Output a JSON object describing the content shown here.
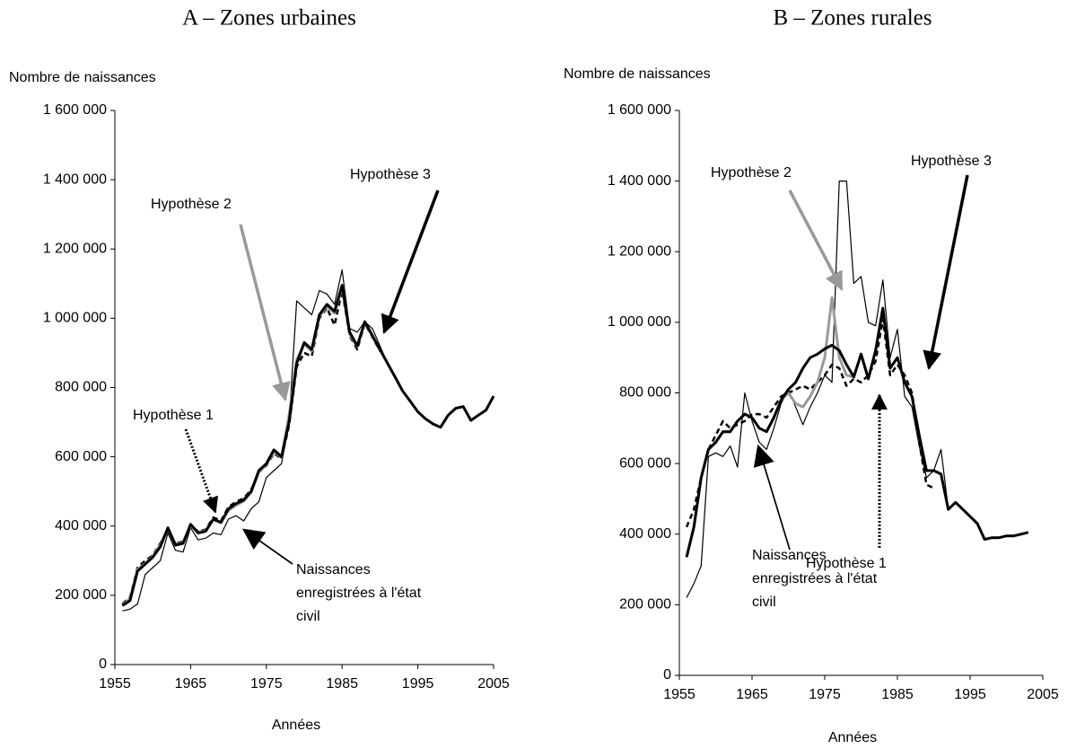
{
  "chart_data": [
    {
      "type": "line",
      "title": "A – Zones urbaines",
      "ylabel": "Nombre de naissances",
      "xlabel": "Années",
      "x": [
        1956,
        1957,
        1958,
        1959,
        1960,
        1961,
        1962,
        1963,
        1964,
        1965,
        1966,
        1967,
        1968,
        1969,
        1970,
        1971,
        1972,
        1973,
        1974,
        1975,
        1976,
        1977,
        1978,
        1979,
        1980,
        1981,
        1982,
        1983,
        1984,
        1985,
        1986,
        1987,
        1988,
        1989,
        1990,
        1991,
        1992,
        1993,
        1994,
        1995,
        1996,
        1997,
        1998,
        1999,
        2000,
        2001,
        2002,
        2003,
        2004,
        2005
      ],
      "xlim": [
        1955,
        2005
      ],
      "xticks": [
        1955,
        1965,
        1975,
        1985,
        1995,
        2005
      ],
      "ylim": [
        0,
        1600000
      ],
      "yticks": [
        0,
        {
          "value": 200000,
          "label": "200 000"
        },
        {
          "value": 400000,
          "label": "400 000"
        },
        {
          "value": 600000,
          "label": "600 000"
        },
        {
          "value": 800000,
          "label": "800 000"
        },
        {
          "value": 1000000,
          "label": "1 000 000"
        },
        {
          "value": 1200000,
          "label": "1 200 000"
        },
        {
          "value": 1400000,
          "label": "1 400 000"
        },
        {
          "value": 1600000,
          "label": "1 600 000"
        }
      ],
      "series": [
        {
          "name": "Naissances enregistrées à l'état civil",
          "color": "#000000",
          "line_style": "solid",
          "values": [
            155000,
            160000,
            175000,
            260000,
            280000,
            300000,
            380000,
            330000,
            325000,
            395000,
            360000,
            365000,
            380000,
            375000,
            420000,
            430000,
            415000,
            450000,
            470000,
            540000,
            560000,
            580000,
            700000,
            1050000,
            1030000,
            1010000,
            1080000,
            1070000,
            1040000,
            1140000,
            970000,
            960000,
            990000,
            970000,
            920000,
            870000,
            830000,
            790000,
            760000,
            730000,
            710000,
            695000,
            685000,
            720000,
            740000,
            745000,
            705000,
            720000,
            735000,
            775000
          ]
        },
        {
          "name": "Hypothèse 1",
          "color": "#000000",
          "line_style": "dashed",
          "values": [
            175000,
            195000,
            280000,
            300000,
            315000,
            350000,
            390000,
            350000,
            355000,
            400000,
            385000,
            390000,
            425000,
            415000,
            455000,
            470000,
            480000,
            505000,
            555000,
            575000,
            610000,
            595000,
            690000,
            860000,
            900000,
            890000,
            1000000,
            1030000,
            980000,
            1080000,
            950000,
            910000,
            985000,
            945000,
            905000,
            null,
            null,
            null,
            null,
            null,
            null,
            null,
            null,
            null,
            null,
            null,
            null,
            null,
            null,
            null
          ]
        },
        {
          "name": "Hypothèse 2",
          "color": "#999999",
          "line_style": "solid",
          "values": [
            172000,
            190000,
            275000,
            292000,
            312000,
            345000,
            392000,
            348000,
            352000,
            402000,
            382000,
            388000,
            418000,
            412000,
            445000,
            460000,
            472000,
            498000,
            555000,
            578000,
            615000,
            598000,
            720000,
            880000,
            925000,
            905000,
            1005000,
            1035000,
            1015000,
            1090000,
            955000,
            918000,
            988000,
            948000,
            908000,
            null,
            null,
            null,
            null,
            null,
            null,
            null,
            null,
            null,
            null,
            null,
            null,
            null,
            null,
            null
          ]
        },
        {
          "name": "Hypothèse 3",
          "color": "#000000",
          "line_style": "solid",
          "values": [
            170000,
            185000,
            270000,
            290000,
            310000,
            340000,
            395000,
            345000,
            350000,
            405000,
            380000,
            385000,
            420000,
            410000,
            450000,
            465000,
            475000,
            500000,
            560000,
            580000,
            620000,
            600000,
            700000,
            870000,
            930000,
            910000,
            1010000,
            1040000,
            1020000,
            1095000,
            960000,
            920000,
            990000,
            950000,
            910000,
            870000,
            830000,
            790000,
            760000,
            730000,
            710000,
            695000,
            685000,
            720000,
            740000,
            745000,
            705000,
            720000,
            735000,
            775000
          ]
        }
      ]
    },
    {
      "type": "line",
      "title": "B – Zones rurales",
      "ylabel": "Nombre de naissances",
      "xlabel": "Années",
      "x": [
        1956,
        1957,
        1958,
        1959,
        1960,
        1961,
        1962,
        1963,
        1964,
        1965,
        1966,
        1967,
        1968,
        1969,
        1970,
        1971,
        1972,
        1973,
        1974,
        1975,
        1976,
        1977,
        1978,
        1979,
        1980,
        1981,
        1982,
        1983,
        1984,
        1985,
        1986,
        1987,
        1988,
        1989,
        1990,
        1991,
        1992,
        1993,
        1994,
        1995,
        1996,
        1997,
        1998,
        1999,
        2000,
        2001,
        2002,
        2003
      ],
      "xlim": [
        1955,
        2005
      ],
      "xticks": [
        1955,
        1965,
        1975,
        1985,
        1995,
        2005
      ],
      "ylim": [
        0,
        1600000
      ],
      "yticks": [
        0,
        {
          "value": 200000,
          "label": "200 000"
        },
        {
          "value": 400000,
          "label": "400 000"
        },
        {
          "value": 600000,
          "label": "600 000"
        },
        {
          "value": 800000,
          "label": "800 000"
        },
        {
          "value": 1000000,
          "label": "1 000 000"
        },
        {
          "value": 1200000,
          "label": "1 200 000"
        },
        {
          "value": 1400000,
          "label": "1 400 000"
        },
        {
          "value": 1600000,
          "label": "1 600 000"
        }
      ],
      "series": [
        {
          "name": "Naissances enregistrées à l'état civil",
          "color": "#000000",
          "line_style": "solid",
          "values": [
            220000,
            260000,
            310000,
            620000,
            630000,
            620000,
            650000,
            590000,
            800000,
            720000,
            660000,
            640000,
            700000,
            770000,
            810000,
            760000,
            710000,
            760000,
            800000,
            850000,
            830000,
            1400000,
            1400000,
            1110000,
            1130000,
            1000000,
            990000,
            1120000,
            900000,
            980000,
            790000,
            760000,
            650000,
            560000,
            580000,
            640000,
            470000,
            490000,
            470000,
            450000,
            430000,
            385000,
            390000,
            390000,
            395000,
            395000,
            400000,
            405000
          ]
        },
        {
          "name": "Hypothèse 1",
          "color": "#000000",
          "line_style": "dashed",
          "values": [
            420000,
            470000,
            560000,
            640000,
            680000,
            720000,
            700000,
            710000,
            720000,
            740000,
            740000,
            730000,
            760000,
            790000,
            800000,
            810000,
            820000,
            810000,
            830000,
            850000,
            880000,
            870000,
            820000,
            840000,
            830000,
            850000,
            890000,
            1010000,
            850000,
            880000,
            850000,
            800000,
            660000,
            540000,
            530000,
            null,
            null,
            null,
            null,
            null,
            null,
            null,
            null,
            null,
            null,
            null,
            null,
            null
          ]
        },
        {
          "name": "Hypothèse 2",
          "color": "#999999",
          "line_style": "solid",
          "values": [
            335000,
            420000,
            560000,
            640000,
            660000,
            690000,
            690000,
            720000,
            740000,
            730000,
            700000,
            690000,
            730000,
            780000,
            800000,
            770000,
            760000,
            790000,
            830000,
            900000,
            1070000,
            900000,
            850000,
            845000,
            910000,
            840000,
            920000,
            1040000,
            870000,
            900000,
            null,
            null,
            null,
            null,
            null,
            null,
            null,
            null,
            null,
            null,
            null,
            null,
            null,
            null,
            null,
            null,
            null,
            null
          ]
        },
        {
          "name": "Hypothèse 3",
          "color": "#000000",
          "line_style": "solid",
          "values": [
            335000,
            420000,
            560000,
            640000,
            660000,
            690000,
            690000,
            720000,
            740000,
            730000,
            700000,
            690000,
            730000,
            780000,
            810000,
            830000,
            870000,
            900000,
            910000,
            925000,
            935000,
            920000,
            880000,
            845000,
            910000,
            840000,
            920000,
            1040000,
            870000,
            900000,
            830000,
            790000,
            680000,
            580000,
            580000,
            570000,
            470000,
            490000,
            470000,
            450000,
            430000,
            385000,
            390000,
            390000,
            395000,
            395000,
            400000,
            405000
          ]
        }
      ]
    }
  ]
}
